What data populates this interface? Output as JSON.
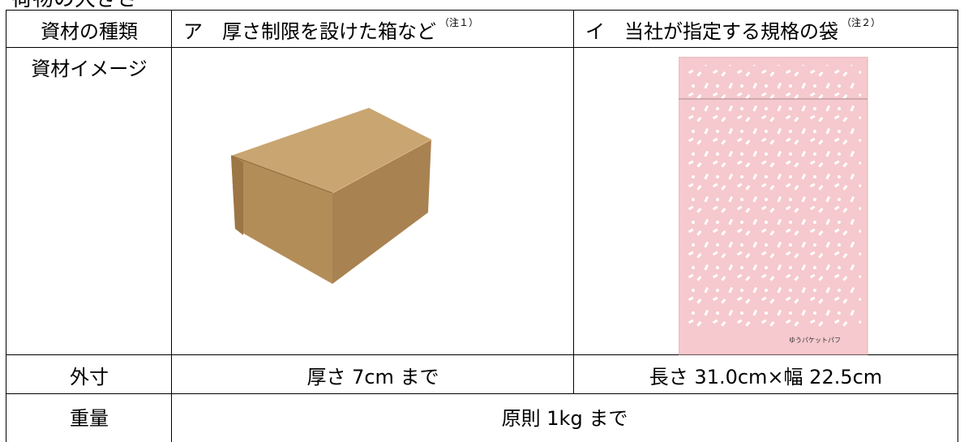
{
  "heading": "荷物の大きさ",
  "table": {
    "header": {
      "label": "資材の種類",
      "col_a": {
        "text": "ア　厚さ制限を設けた箱など",
        "note": "（注１）"
      },
      "col_b": {
        "text": "イ　当社が指定する規格の袋",
        "note": "（注２）"
      }
    },
    "image_row": {
      "label": "資材イメージ",
      "bag_logo": "ゆうパケットパフ"
    },
    "size_row": {
      "label": "外寸",
      "col_a": "厚さ 7cm まで",
      "col_b": "長さ 31.0cm×幅 22.5cm"
    },
    "weight_row": {
      "label": "重量",
      "value": "原則 1kg まで"
    }
  }
}
